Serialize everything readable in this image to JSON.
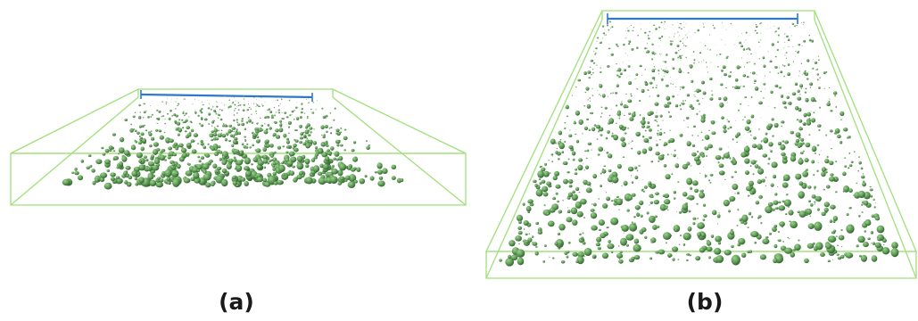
{
  "figure": {
    "panels": [
      {
        "id": "a",
        "label": "(a)"
      },
      {
        "id": "b",
        "label": "(b)"
      }
    ]
  },
  "colors": {
    "bounding_box": "#9fe07a",
    "scale_bar": "#2f78c8",
    "particle_light": "#8cc47e",
    "particle_mid": "#5d9a55",
    "particle_dark": "#2f5e2c",
    "label_text": "#1a1a1a",
    "background": "#ffffff"
  }
}
